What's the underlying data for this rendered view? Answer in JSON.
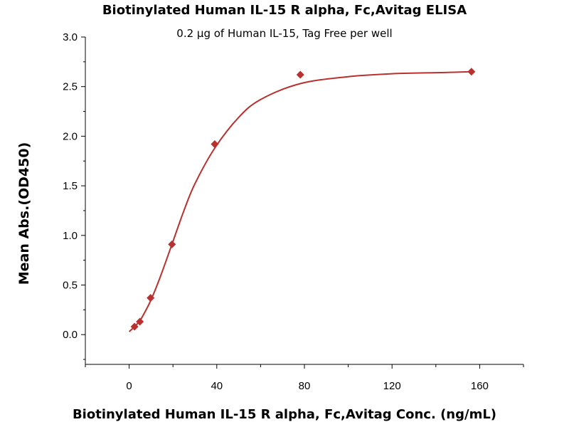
{
  "chart_data": {
    "type": "scatter",
    "title": "Biotinylated Human IL-15 R alpha, Fc,Avitag ELISA",
    "subtitle": "0.2 μg of Human IL-15, Tag Free per well",
    "xlabel": "Biotinylated Human IL-15 R alpha, Fc,Avitag Conc. (ng/mL)",
    "ylabel": "Mean Abs.(OD450)",
    "xlim": [
      -20,
      180
    ],
    "ylim": [
      -0.3,
      3.0
    ],
    "x_ticks": [
      0,
      40,
      80,
      120,
      160
    ],
    "x_tick_labels": [
      "0",
      "40",
      "80",
      "120",
      "160"
    ],
    "y_ticks": [
      0.0,
      0.5,
      1.0,
      1.5,
      2.0,
      2.5,
      3.0
    ],
    "y_tick_labels": [
      "0.0",
      "0.5",
      "1.0",
      "1.5",
      "2.0",
      "2.5",
      "3.0"
    ],
    "grid": false,
    "marker_color": "#b8312f",
    "line_color": "#b8312f",
    "series": [
      {
        "x": [
          2.44,
          4.88,
          9.77,
          19.53,
          39.06,
          78.13,
          156.25
        ],
        "y": [
          0.08,
          0.13,
          0.37,
          0.91,
          1.92,
          2.62,
          2.65
        ]
      }
    ],
    "fit_curve": {
      "x": [
        0,
        2.44,
        4.88,
        7,
        9.77,
        14,
        19.53,
        25,
        30,
        39.06,
        50,
        60,
        78.13,
        100,
        120,
        140,
        156.25
      ],
      "y": [
        0.03,
        0.08,
        0.14,
        0.22,
        0.34,
        0.57,
        0.91,
        1.25,
        1.52,
        1.88,
        2.19,
        2.37,
        2.53,
        2.6,
        2.63,
        2.64,
        2.65
      ]
    }
  }
}
